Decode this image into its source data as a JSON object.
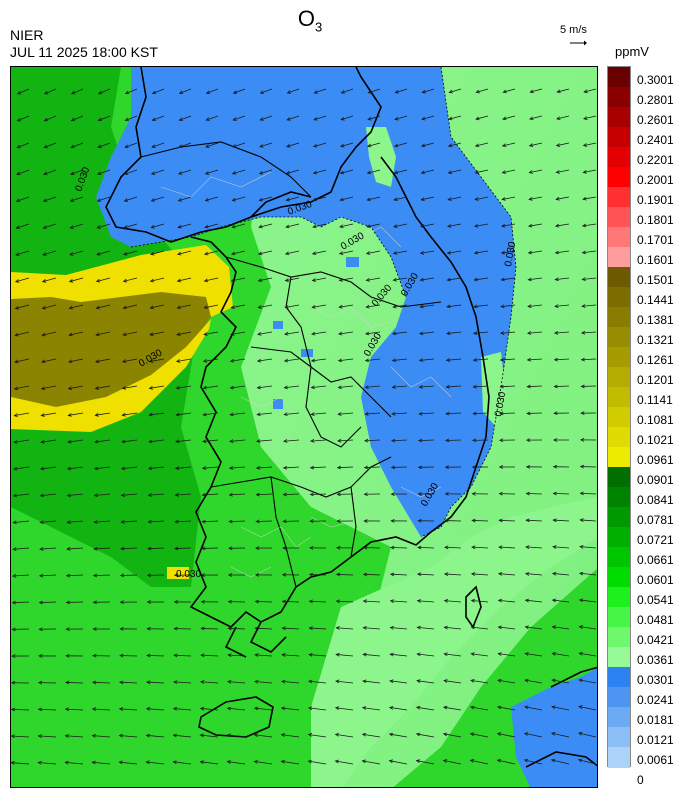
{
  "header": {
    "title_main": "O",
    "title_sub": "3",
    "org": "NIER",
    "datetime": "JUL 11 2025 18:00 KST",
    "ref_vector_label": "5 m/s",
    "unit": "ppmV"
  },
  "map": {
    "contour_labels": [
      "0.030",
      "0.030",
      "0.030",
      "0.030",
      "0.030",
      "0.030",
      "0.030",
      "0.030",
      "0.030",
      "0.030",
      "0.030"
    ],
    "wind_direction": "from northeast",
    "colors": {
      "blue_zone": "#3c8cf5",
      "light_green_zone": "#8cf58c",
      "green_zone": "#2fd62b",
      "dark_green_zone": "#10b810",
      "olive_zone": "#8a8a00",
      "yellow_zone": "#f0e000"
    }
  },
  "colorbar": {
    "segments": [
      {
        "label": "0.3001",
        "color": "#6b0000"
      },
      {
        "label": "0.2801",
        "color": "#8a0000"
      },
      {
        "label": "0.2601",
        "color": "#a80000"
      },
      {
        "label": "0.2401",
        "color": "#c60000"
      },
      {
        "label": "0.2201",
        "color": "#e40000"
      },
      {
        "label": "0.2001",
        "color": "#ff0000"
      },
      {
        "label": "0.1901",
        "color": "#ff3030"
      },
      {
        "label": "0.1801",
        "color": "#ff5454"
      },
      {
        "label": "0.1701",
        "color": "#ff7878"
      },
      {
        "label": "0.1601",
        "color": "#ff9c9c"
      },
      {
        "label": "0.1501",
        "color": "#6e5a00"
      },
      {
        "label": "0.1441",
        "color": "#7d6c00"
      },
      {
        "label": "0.1381",
        "color": "#8a7c00"
      },
      {
        "label": "0.1321",
        "color": "#988c00"
      },
      {
        "label": "0.1261",
        "color": "#a69c00"
      },
      {
        "label": "0.1201",
        "color": "#b4ac00"
      },
      {
        "label": "0.1141",
        "color": "#c2bc00"
      },
      {
        "label": "0.1081",
        "color": "#d0cc00"
      },
      {
        "label": "0.1021",
        "color": "#dedc00"
      },
      {
        "label": "0.0961",
        "color": "#ecec00"
      },
      {
        "label": "0.0901",
        "color": "#006e00"
      },
      {
        "label": "0.0841",
        "color": "#008400"
      },
      {
        "label": "0.0781",
        "color": "#009a00"
      },
      {
        "label": "0.0721",
        "color": "#00b000"
      },
      {
        "label": "0.0661",
        "color": "#00c600"
      },
      {
        "label": "0.0601",
        "color": "#00dc00"
      },
      {
        "label": "0.0541",
        "color": "#1ef01e"
      },
      {
        "label": "0.0481",
        "color": "#46f546"
      },
      {
        "label": "0.0421",
        "color": "#6ef86e"
      },
      {
        "label": "0.0361",
        "color": "#96fb96"
      },
      {
        "label": "0.0301",
        "color": "#2c82f0"
      },
      {
        "label": "0.0241",
        "color": "#4c96f2"
      },
      {
        "label": "0.0181",
        "color": "#6caaf4"
      },
      {
        "label": "0.0121",
        "color": "#8cbef6"
      },
      {
        "label": "0.0061",
        "color": "#acd2f8"
      },
      {
        "label": "0",
        "color": "#acd2f8"
      }
    ]
  }
}
